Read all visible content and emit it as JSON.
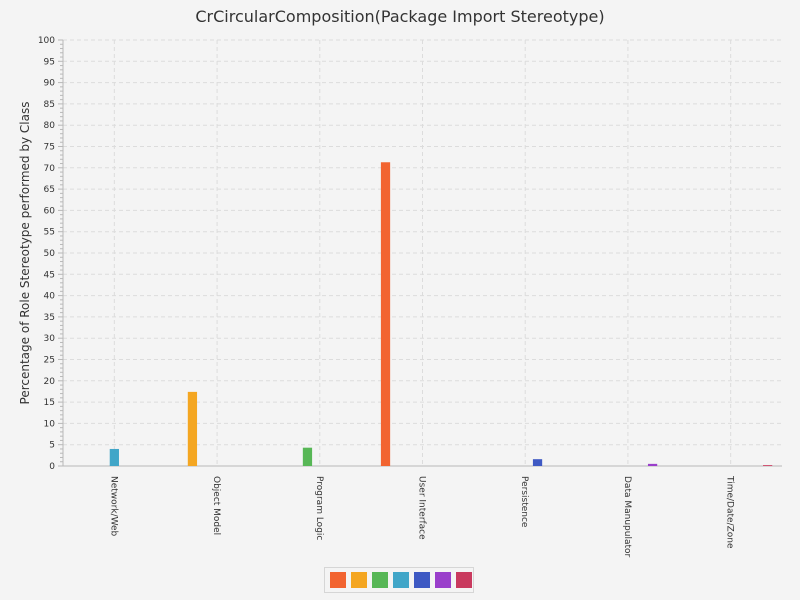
{
  "chart_data": {
    "type": "bar",
    "title": "CrCircularComposition(Package Import Stereotype)",
    "ylabel": "Percentage of Role Stereotype performed by Class",
    "xlabel": "",
    "ylim": [
      0,
      100
    ],
    "y_major_step": 5,
    "y_minor_step": 1,
    "grid": true,
    "categories": [
      "Network/Web",
      "Object Model",
      "Program Logic",
      "User Interface",
      "Persistence",
      "Data Manupulator",
      "Time/Date/Zone"
    ],
    "series": [
      {
        "color": "#f26430",
        "values": [
          0,
          0,
          0,
          71.3,
          0,
          0,
          0
        ]
      },
      {
        "color": "#f4a621",
        "values": [
          0,
          17.4,
          0,
          0,
          0,
          0,
          0
        ]
      },
      {
        "color": "#57b756",
        "values": [
          0,
          0,
          4.3,
          0,
          0,
          0,
          0
        ]
      },
      {
        "color": "#41a6c8",
        "values": [
          4.0,
          0,
          0,
          0,
          0,
          0,
          0
        ]
      },
      {
        "color": "#3e59c3",
        "values": [
          0,
          0,
          0,
          0,
          1.6,
          0,
          0
        ]
      },
      {
        "color": "#9a3fcb",
        "values": [
          0,
          0,
          0,
          0,
          0,
          0.5,
          0
        ]
      },
      {
        "color": "#c93a5e",
        "values": [
          0,
          0,
          0,
          0,
          0,
          0,
          0.2
        ]
      }
    ],
    "legend": "bottom"
  }
}
